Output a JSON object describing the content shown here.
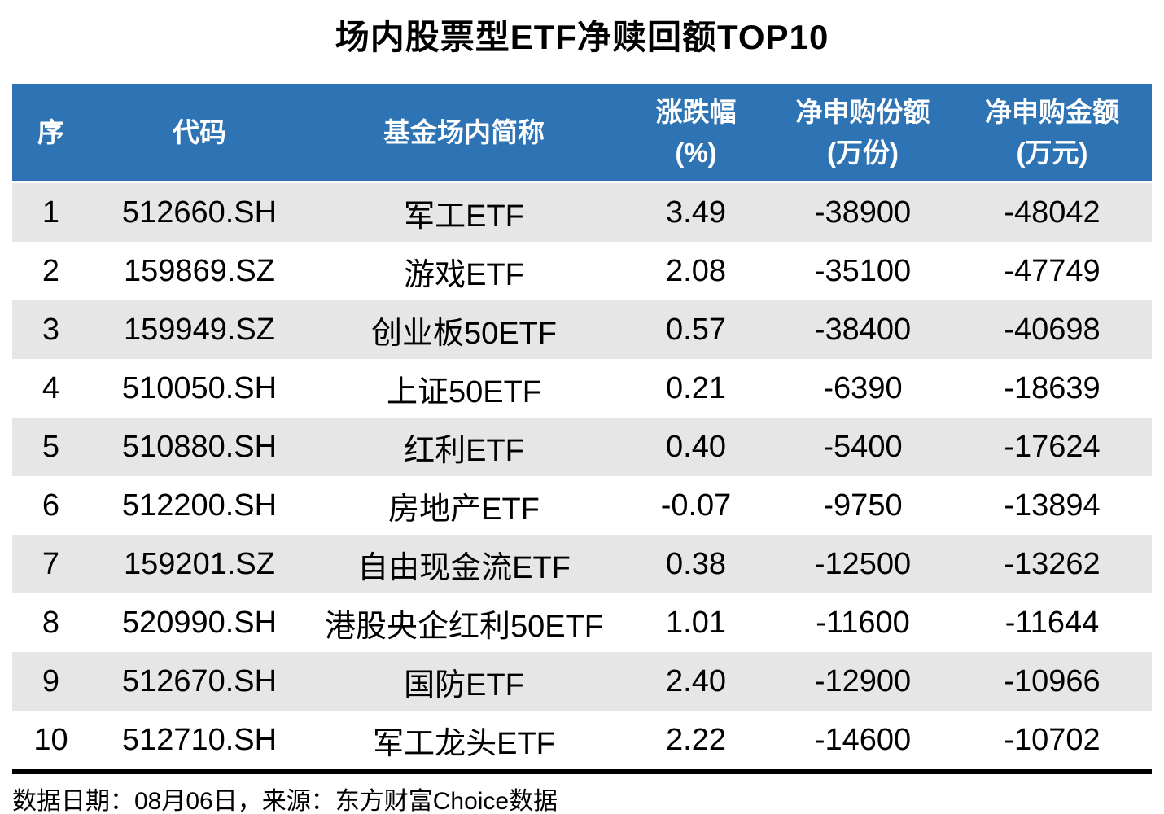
{
  "chart_data": {
    "type": "table",
    "title": "场内股票型ETF净赎回额TOP10",
    "headers": [
      {
        "line1": "序",
        "line2": ""
      },
      {
        "line1": "代码",
        "line2": ""
      },
      {
        "line1": "基金场内简称",
        "line2": ""
      },
      {
        "line1": "涨跌幅",
        "line2": "(%)"
      },
      {
        "line1": "净申购份额",
        "line2": "(万份)"
      },
      {
        "line1": "净申购金额",
        "line2": "(万元)"
      }
    ],
    "columns_flat": [
      "序",
      "代码",
      "基金场内简称",
      "涨跌幅(%)",
      "净申购份额(万份)",
      "净申购金额(万元)"
    ],
    "rows": [
      {
        "seq": "1",
        "code": "512660.SH",
        "name": "军工ETF",
        "change": "3.49",
        "net_shares": "-38900",
        "net_amount": "-48042"
      },
      {
        "seq": "2",
        "code": "159869.SZ",
        "name": "游戏ETF",
        "change": "2.08",
        "net_shares": "-35100",
        "net_amount": "-47749"
      },
      {
        "seq": "3",
        "code": "159949.SZ",
        "name": "创业板50ETF",
        "change": "0.57",
        "net_shares": "-38400",
        "net_amount": "-40698"
      },
      {
        "seq": "4",
        "code": "510050.SH",
        "name": "上证50ETF",
        "change": "0.21",
        "net_shares": "-6390",
        "net_amount": "-18639"
      },
      {
        "seq": "5",
        "code": "510880.SH",
        "name": "红利ETF",
        "change": "0.40",
        "net_shares": "-5400",
        "net_amount": "-17624"
      },
      {
        "seq": "6",
        "code": "512200.SH",
        "name": "房地产ETF",
        "change": "-0.07",
        "net_shares": "-9750",
        "net_amount": "-13894"
      },
      {
        "seq": "7",
        "code": "159201.SZ",
        "name": "自由现金流ETF",
        "change": "0.38",
        "net_shares": "-12500",
        "net_amount": "-13262"
      },
      {
        "seq": "8",
        "code": "520990.SH",
        "name": "港股央企红利50ETF",
        "change": "1.01",
        "net_shares": "-11600",
        "net_amount": "-11644"
      },
      {
        "seq": "9",
        "code": "512670.SH",
        "name": "国防ETF",
        "change": "2.40",
        "net_shares": "-12900",
        "net_amount": "-10966"
      },
      {
        "seq": "10",
        "code": "512710.SH",
        "name": "军工龙头ETF",
        "change": "2.22",
        "net_shares": "-14600",
        "net_amount": "-10702"
      }
    ]
  },
  "footer": {
    "source_note": "数据日期：08月06日，来源：东方财富Choice数据"
  },
  "colors": {
    "header_bg": "#2E74B5",
    "header_text": "#FFFFFF",
    "row_alt_bg": "#E7E6E6",
    "body_text": "#000000",
    "divider": "#000000"
  }
}
